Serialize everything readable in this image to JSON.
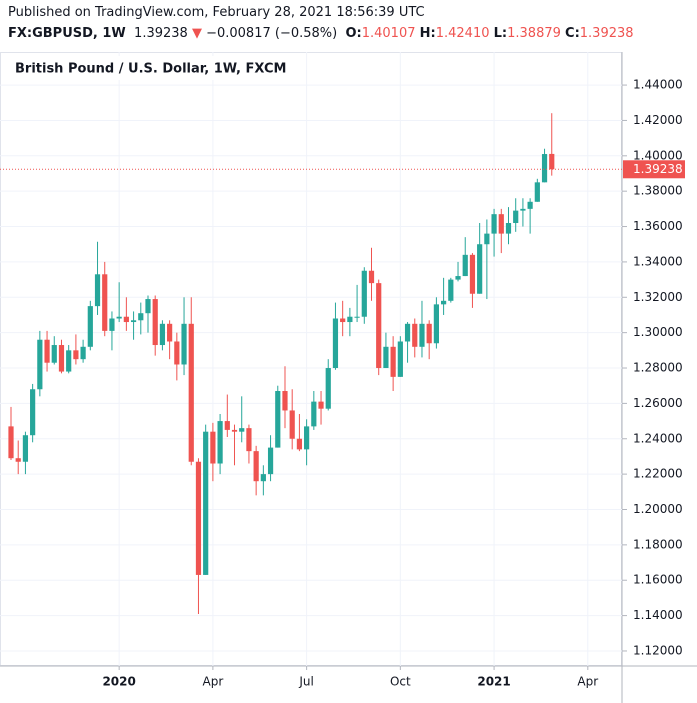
{
  "header": {
    "published": "Published on TradingView.com, February 28, 2021 18:56:39 UTC",
    "symbol": "FX:GBPUSD, 1W",
    "last": "1.39238",
    "change": "−0.00817 (−0.58%)",
    "ohlc": [
      {
        "label": "O:",
        "value": "1.40107"
      },
      {
        "label": "H:",
        "value": "1.42410"
      },
      {
        "label": "L:",
        "value": "1.38879"
      },
      {
        "label": "C:",
        "value": "1.39238"
      }
    ]
  },
  "chart_data": {
    "type": "candlestick",
    "title": "British Pound / U.S. Dollar, 1W, FXCM",
    "up_color": "#26a69a",
    "down_color": "#ef5350",
    "grid": true,
    "categories": [
      null,
      null,
      null,
      null,
      null,
      null,
      null,
      null,
      null,
      null,
      null,
      null,
      null,
      null,
      null,
      "2020",
      null,
      null,
      null,
      null,
      null,
      null,
      null,
      null,
      null,
      null,
      null,
      null,
      "Apr",
      null,
      null,
      null,
      null,
      null,
      null,
      null,
      null,
      null,
      null,
      null,
      null,
      "Jul",
      null,
      null,
      null,
      null,
      null,
      null,
      null,
      null,
      null,
      null,
      null,
      null,
      "Oct",
      null,
      null,
      null,
      null,
      null,
      null,
      null,
      null,
      null,
      null,
      null,
      null,
      "2021",
      null,
      null,
      null,
      null,
      null,
      null,
      null,
      null,
      null,
      null,
      null,
      null,
      "Apr",
      null,
      null,
      null,
      null
    ],
    "open": [
      1.247,
      1.229,
      1.227,
      1.242,
      1.268,
      1.296,
      1.283,
      1.293,
      1.278,
      1.29,
      1.285,
      1.292,
      1.315,
      1.333,
      1.301,
      1.308,
      1.309,
      1.306,
      1.307,
      1.311,
      1.319,
      1.293,
      1.305,
      1.295,
      1.282,
      1.305,
      1.227,
      1.163,
      1.244,
      1.226,
      1.25,
      1.245,
      1.244,
      1.246,
      1.233,
      1.216,
      1.22,
      1.235,
      1.267,
      1.256,
      1.24,
      1.234,
      1.247,
      1.261,
      1.257,
      1.28,
      1.308,
      1.306,
      1.309,
      1.309,
      1.335,
      1.328,
      1.28,
      1.292,
      1.275,
      1.295,
      1.305,
      1.292,
      1.305,
      1.294,
      1.316,
      1.318,
      1.33,
      1.332,
      1.344,
      1.322,
      1.35,
      1.356,
      1.367,
      1.356,
      1.362,
      1.369,
      1.37,
      1.374,
      1.385,
      1.40107,
      null,
      null,
      null,
      null,
      null,
      null,
      null,
      null,
      null
    ],
    "high": [
      1.258,
      1.239,
      1.244,
      1.271,
      1.301,
      1.301,
      1.298,
      1.296,
      1.293,
      1.299,
      1.296,
      1.318,
      1.3514,
      1.34,
      1.312,
      1.3285,
      1.32,
      1.312,
      1.317,
      1.321,
      1.321,
      1.307,
      1.307,
      1.3,
      1.32,
      1.32,
      1.229,
      1.248,
      1.249,
      1.254,
      1.265,
      1.248,
      1.264,
      1.248,
      1.236,
      1.225,
      1.242,
      1.27,
      1.281,
      1.268,
      1.254,
      1.251,
      1.267,
      1.267,
      1.285,
      1.317,
      1.318,
      1.314,
      1.327,
      1.337,
      1.348,
      1.33,
      1.3,
      1.298,
      1.298,
      1.306,
      1.308,
      1.318,
      1.307,
      1.32,
      1.331,
      1.331,
      1.34,
      1.354,
      1.345,
      1.362,
      1.364,
      1.37,
      1.37,
      1.371,
      1.376,
      1.376,
      1.376,
      1.387,
      1.404,
      1.4241,
      null,
      null,
      null,
      null,
      null,
      null,
      null,
      null,
      null
    ],
    "low": [
      1.228,
      1.22,
      1.22,
      1.238,
      1.264,
      1.278,
      1.282,
      1.277,
      1.277,
      1.282,
      1.283,
      1.29,
      1.31,
      1.298,
      1.29,
      1.306,
      1.301,
      1.296,
      1.299,
      1.3,
      1.287,
      1.29,
      1.285,
      1.273,
      1.276,
      1.225,
      1.1409,
      1.163,
      1.216,
      1.22,
      1.241,
      1.225,
      1.238,
      1.226,
      1.208,
      1.208,
      1.216,
      1.235,
      1.246,
      1.234,
      1.233,
      1.225,
      1.245,
      1.248,
      1.256,
      1.279,
      1.298,
      1.298,
      1.306,
      1.305,
      1.318,
      1.276,
      1.28,
      1.267,
      1.275,
      1.283,
      1.286,
      1.286,
      1.285,
      1.291,
      1.31,
      1.317,
      1.329,
      1.332,
      1.314,
      1.322,
      1.319,
      1.343,
      1.345,
      1.35,
      1.357,
      1.36,
      1.356,
      1.374,
      1.385,
      1.38879,
      null,
      null,
      null,
      null,
      null,
      null,
      null,
      null,
      null
    ],
    "close": [
      1.229,
      1.227,
      1.242,
      1.268,
      1.296,
      1.283,
      1.293,
      1.278,
      1.29,
      1.285,
      1.292,
      1.315,
      1.333,
      1.301,
      1.308,
      1.309,
      1.306,
      1.307,
      1.311,
      1.319,
      1.293,
      1.305,
      1.295,
      1.282,
      1.305,
      1.227,
      1.163,
      1.244,
      1.226,
      1.25,
      1.245,
      1.244,
      1.246,
      1.233,
      1.216,
      1.22,
      1.235,
      1.267,
      1.256,
      1.24,
      1.234,
      1.247,
      1.261,
      1.257,
      1.28,
      1.308,
      1.306,
      1.309,
      1.309,
      1.335,
      1.328,
      1.28,
      1.292,
      1.275,
      1.295,
      1.305,
      1.292,
      1.305,
      1.294,
      1.316,
      1.318,
      1.33,
      1.332,
      1.344,
      1.322,
      1.35,
      1.356,
      1.367,
      1.356,
      1.362,
      1.369,
      1.37,
      1.374,
      1.385,
      1.401,
      1.39238,
      null,
      null,
      null,
      null,
      null,
      null,
      null,
      null,
      null
    ],
    "last_price": 1.39238,
    "ylim": [
      1.1115,
      1.4587
    ],
    "yticks": [
      {
        "value": 1.12,
        "label": "1.12000"
      },
      {
        "value": 1.14,
        "label": "1.14000"
      },
      {
        "value": 1.16,
        "label": "1.16000"
      },
      {
        "value": 1.18,
        "label": "1.18000"
      },
      {
        "value": 1.2,
        "label": "1.20000"
      },
      {
        "value": 1.22,
        "label": "1.22000"
      },
      {
        "value": 1.24,
        "label": "1.24000"
      },
      {
        "value": 1.26,
        "label": "1.26000"
      },
      {
        "value": 1.28,
        "label": "1.28000"
      },
      {
        "value": 1.3,
        "label": "1.30000"
      },
      {
        "value": 1.32,
        "label": "1.32000"
      },
      {
        "value": 1.34,
        "label": "1.34000"
      },
      {
        "value": 1.36,
        "label": "1.36000"
      },
      {
        "value": 1.38,
        "label": "1.38000"
      },
      {
        "value": 1.4,
        "label": "1.40000"
      },
      {
        "value": 1.42,
        "label": "1.42000"
      },
      {
        "value": 1.44,
        "label": "1.44000"
      }
    ]
  }
}
